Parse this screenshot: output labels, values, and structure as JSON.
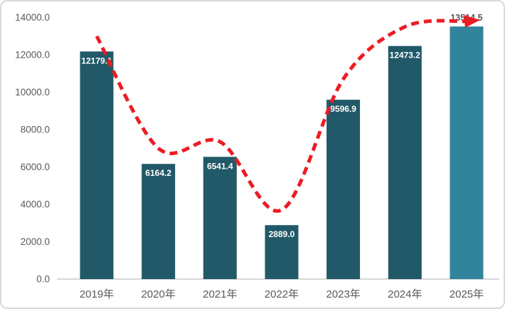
{
  "chart_data": {
    "type": "bar",
    "subtype": "bar-with-dashed-trend-line",
    "title": "",
    "xlabel": "",
    "ylabel": "",
    "categories": [
      "2019年",
      "2020年",
      "2021年",
      "2022年",
      "2023年",
      "2024年",
      "2025年"
    ],
    "series": [
      {
        "name": "bars",
        "type": "bar",
        "values": [
          12179.1,
          6164.2,
          6541.4,
          2889.0,
          9596.9,
          12473.2,
          13514.5
        ],
        "data_labels": [
          "12179.1",
          "6164.2",
          "6541.4",
          "2889.0",
          "9596.9",
          "12473.2",
          "13514.5"
        ],
        "label_positions": [
          "inside",
          "inside",
          "inside",
          "inside",
          "inside",
          "inside",
          "outside"
        ]
      },
      {
        "name": "trend-line",
        "type": "line",
        "style": "dashed-smoothed-arrow",
        "values_estimated": [
          13000,
          7000,
          7350,
          3700,
          10700,
          13500,
          13800
        ]
      }
    ],
    "ylim": [
      0,
      14000
    ],
    "ytick_step": 2000,
    "ytick_labels": [
      "0.0",
      "2000.0",
      "4000.0",
      "6000.0",
      "8000.0",
      "10000.0",
      "12000.0",
      "14000.0"
    ],
    "grid": false,
    "legend": null,
    "colors": {
      "bar_default": "#215968",
      "bar_highlight": "#31849B",
      "highlight_index": 6,
      "trend_line": "#EC1C24",
      "axis_text": "#595959",
      "axis_line": "#BFBFBF",
      "label_inside": "#FFFFFF",
      "label_outside": "#595959",
      "frame_border": "#D9D9D9",
      "background": "#FFFFFF"
    }
  }
}
